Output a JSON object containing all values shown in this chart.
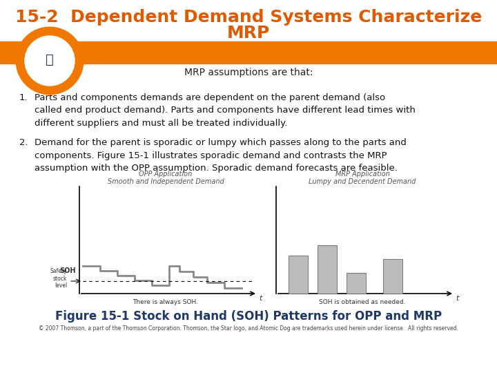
{
  "title_line1": "15-2  Dependent Demand Systems Characterize",
  "title_line2": "MRP",
  "title_color": "#E05A00",
  "title_fontsize": 18,
  "orange_bar_color": "#F07800",
  "white_bg": "#FFFFFF",
  "header_subtitle": "MRP assumptions are that:",
  "header_subtitle_color": "#222222",
  "header_subtitle_fontsize": 10,
  "item1_number": "1.",
  "item1_text": "Parts and components demands are dependent on the parent demand (also\ncalled end product demand). Parts and components have different lead times with\ndifferent suppliers and must all be treated individually.",
  "item2_number": "2.",
  "item2_text": "Demand for the parent is sporadic or lumpy which passes along to the parts and\ncomponents. Figure 15-1 illustrates sporadic demand and contrasts the MRP\nassumption with the OPP assumption. Sporadic demand forecasts are feasible.",
  "item_text_color": "#111111",
  "item_fontsize": 9.5,
  "fig_caption": "Figure 15-1 Stock on Hand (SOH) Patterns for OPP and MRP",
  "fig_caption_color": "#1F3864",
  "fig_caption_fontsize": 12,
  "copyright_text": "© 2007 Thomson, a part of the Thomson Corporation. Thomson, the Star logo, and Atomic Dog are trademarks used herein under license.  All rights reserved.",
  "copyright_color": "#444444",
  "copyright_fontsize": 5.5,
  "opp_label1": "OPP Application",
  "opp_label2": "Smooth and Independent Demand",
  "mrp_label1": "MRP Application",
  "mrp_label2": "Lumpy and Decendent Demand",
  "label_fontsize": 7,
  "label_color": "#555555",
  "soh_label": "SOH",
  "safety_label": "Safety\nstock\nlevel",
  "there_always": "There is always SOH.",
  "soh_obtained": "SOH is obtained as needed.",
  "chart_text_color": "#333333",
  "bar_color": "#BBBBBB"
}
